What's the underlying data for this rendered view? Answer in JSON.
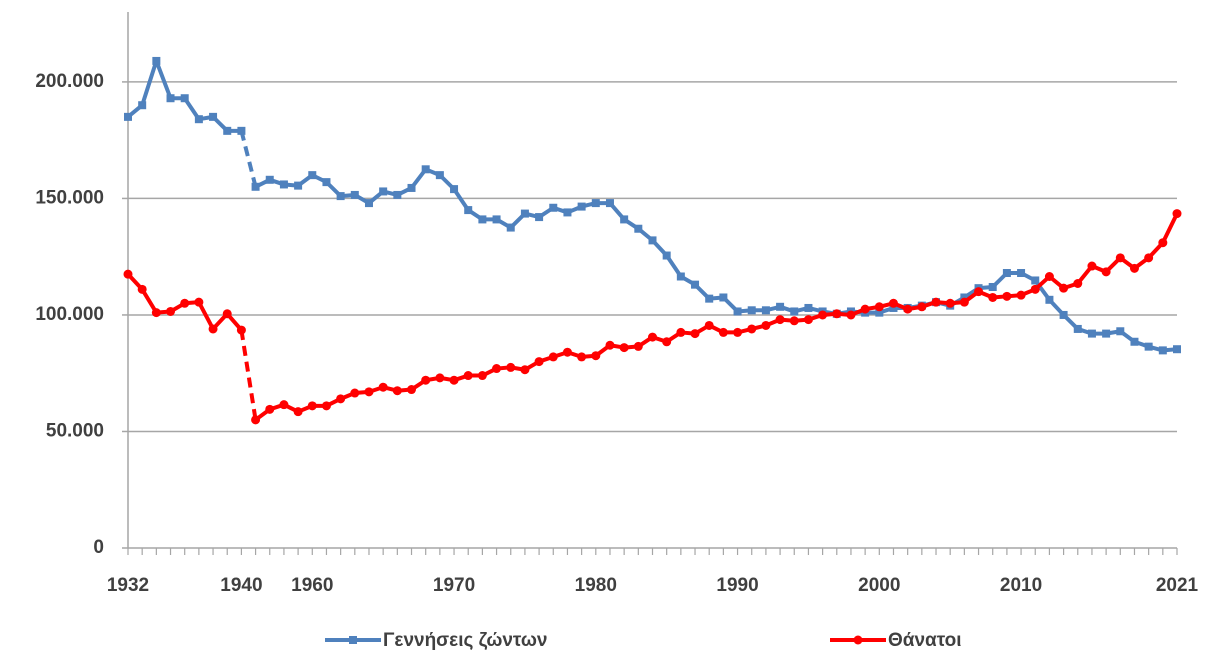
{
  "chart_data": {
    "type": "line",
    "categories": [
      "1932",
      null,
      null,
      null,
      null,
      null,
      null,
      null,
      "1940",
      null,
      null,
      null,
      null,
      "1960",
      null,
      null,
      null,
      null,
      null,
      null,
      null,
      null,
      null,
      "1970",
      null,
      null,
      null,
      null,
      null,
      null,
      null,
      null,
      null,
      "1980",
      null,
      null,
      null,
      null,
      null,
      null,
      null,
      null,
      null,
      "1990",
      null,
      null,
      null,
      null,
      null,
      null,
      null,
      null,
      null,
      "2000",
      null,
      null,
      null,
      null,
      null,
      null,
      null,
      null,
      null,
      "2010",
      null,
      null,
      null,
      null,
      null,
      null,
      null,
      null,
      null,
      null,
      "2021"
    ],
    "series": [
      {
        "name": "Γεννήσεις ζώντων",
        "color": "#4f81bd",
        "marker": "square",
        "values": [
          185000,
          190000,
          209000,
          193000,
          193000,
          184000,
          185000,
          179000,
          179000,
          155000,
          158000,
          156000,
          155500,
          160000,
          157000,
          151000,
          151500,
          148000,
          153000,
          151500,
          154500,
          162500,
          160000,
          154000,
          145000,
          141000,
          141000,
          137500,
          143500,
          142000,
          146000,
          144000,
          146500,
          148000,
          148000,
          141000,
          137000,
          132000,
          125500,
          116500,
          113000,
          107000,
          107500,
          101500,
          102000,
          102000,
          103500,
          101500,
          103000,
          101500,
          100500,
          101500,
          101000,
          101000,
          103000,
          103000,
          104000,
          105500,
          104000,
          107500,
          111500,
          112000,
          118000,
          118000,
          114800,
          106500,
          100000,
          94000,
          92000,
          92000,
          93000,
          88500,
          86400,
          84800,
          85300
        ]
      },
      {
        "name": "Θάνατοι",
        "color": "#ff0000",
        "marker": "circle",
        "values": [
          117500,
          111000,
          101000,
          101500,
          105000,
          105500,
          94000,
          100500,
          93500,
          55000,
          59500,
          61500,
          58500,
          61000,
          61000,
          64000,
          66500,
          67000,
          69000,
          67500,
          68000,
          72000,
          73000,
          72000,
          74000,
          74000,
          77000,
          77500,
          76500,
          80000,
          82000,
          84000,
          82000,
          82500,
          87000,
          86000,
          86500,
          90500,
          88500,
          92500,
          92000,
          95500,
          92500,
          92500,
          94000,
          95500,
          98000,
          97500,
          98000,
          100000,
          100500,
          100000,
          102500,
          103500,
          105000,
          102500,
          103500,
          105500,
          105000,
          105500,
          110000,
          107500,
          108000,
          108500,
          111000,
          116500,
          111500,
          113500,
          121000,
          118500,
          124500,
          120000,
          124500,
          131000,
          143500
        ]
      }
    ],
    "dashed_segment": [
      8,
      9
    ],
    "ylim": [
      0,
      230000
    ],
    "yticks": [
      0,
      {
        "value": 50000,
        "label": "50.000"
      },
      {
        "value": 100000,
        "label": "100.000"
      },
      {
        "value": 150000,
        "label": "150.000"
      },
      {
        "value": 200000,
        "label": "200.000"
      }
    ],
    "grid": true,
    "legend": "bottom"
  }
}
